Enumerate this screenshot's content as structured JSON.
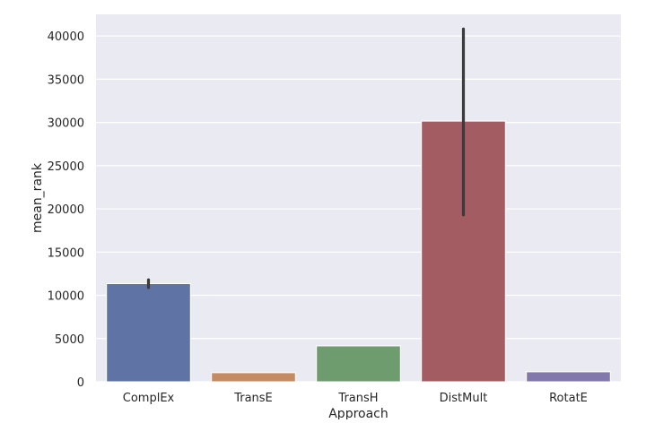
{
  "chart_data": {
    "type": "bar",
    "xlabel": "Approach",
    "ylabel": "mean_rank",
    "ylim": [
      0,
      42500
    ],
    "yticks": [
      0,
      5000,
      10000,
      15000,
      20000,
      25000,
      30000,
      35000,
      40000
    ],
    "categories": [
      "ComplEx",
      "TransE",
      "TransH",
      "DistMult",
      "RotatE"
    ],
    "values": [
      11350,
      1050,
      4150,
      30150,
      1150
    ],
    "error_bars": [
      {
        "low": 10900,
        "high": 11800
      },
      null,
      null,
      {
        "low": 19300,
        "high": 40800
      },
      null
    ],
    "colors": [
      "#5f74a4",
      "#c48a62",
      "#6e9c6f",
      "#a35c62",
      "#8278ab"
    ],
    "grid": true,
    "background": "#eaeaf2",
    "grid_color": "#ffffff",
    "error_bar_color": "#3b3b3b"
  }
}
